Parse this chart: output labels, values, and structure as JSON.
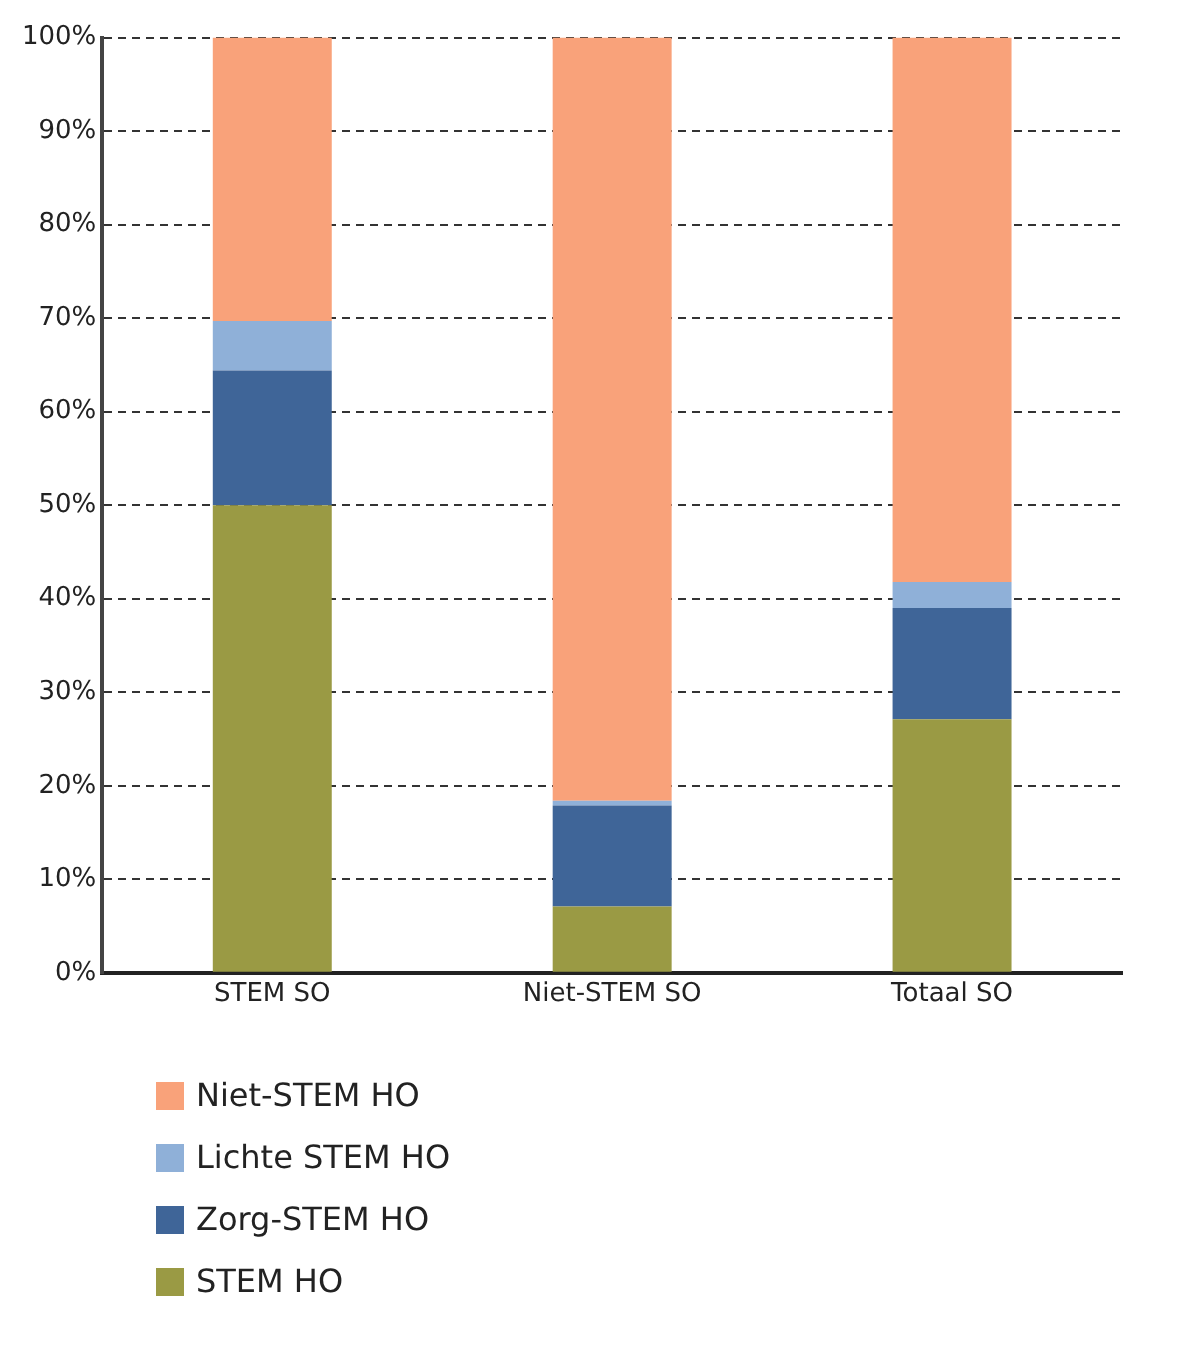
{
  "chart_data": {
    "type": "bar",
    "stacked": true,
    "categories": [
      "STEM SO",
      "Niet-STEM SO",
      "Totaal SO"
    ],
    "series": [
      {
        "name": "STEM HO",
        "color": "#9a9a44",
        "values": [
          50,
          7.1,
          27.1
        ]
      },
      {
        "name": "Zorg-STEM HO",
        "color": "#3f6598",
        "values": [
          14.4,
          10.8,
          11.9
        ]
      },
      {
        "name": "Lichte STEM HO",
        "color": "#8fb0d8",
        "values": [
          5.3,
          0.5,
          2.8
        ]
      },
      {
        "name": "Niet-STEM HO",
        "color": "#f9a27a",
        "values": [
          30.3,
          81.6,
          58.2
        ]
      }
    ],
    "ylim": [
      0,
      100
    ],
    "yticks": [
      {
        "value": 0,
        "label": "0%"
      },
      {
        "value": 10,
        "label": "10%"
      },
      {
        "value": 20,
        "label": "20%"
      },
      {
        "value": 30,
        "label": "30%"
      },
      {
        "value": 40,
        "label": "40%"
      },
      {
        "value": 50,
        "label": "50%"
      },
      {
        "value": 60,
        "label": "60%"
      },
      {
        "value": 70,
        "label": "70%"
      },
      {
        "value": 80,
        "label": "80%"
      },
      {
        "value": 90,
        "label": "90%"
      },
      {
        "value": 100,
        "label": "100%"
      }
    ],
    "grid": "y",
    "legend": "bottom"
  }
}
